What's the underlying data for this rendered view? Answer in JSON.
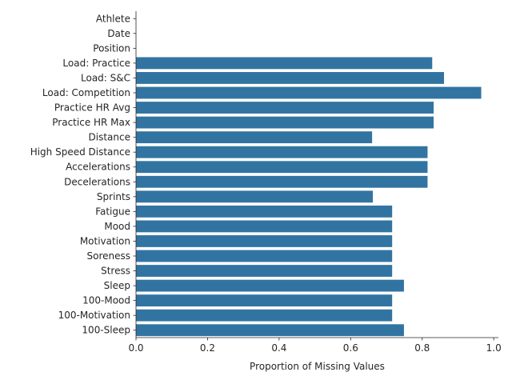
{
  "chart_data": {
    "type": "bar",
    "orientation": "horizontal",
    "categories": [
      "Athlete",
      "Date",
      "Position",
      "Load: Practice",
      "Load: S&C",
      "Load: Competition",
      "Practice HR Avg",
      "Practice HR Max",
      "Distance",
      "High Speed Distance",
      "Accelerations",
      "Decelerations",
      "Sprints",
      "Fatigue",
      "Mood",
      "Motivation",
      "Soreness",
      "Stress",
      "Sleep",
      "100-Mood",
      "100-Motivation",
      "100-Sleep"
    ],
    "values": [
      0,
      0,
      0,
      0.828,
      0.861,
      0.965,
      0.832,
      0.832,
      0.66,
      0.815,
      0.815,
      0.815,
      0.662,
      0.716,
      0.716,
      0.716,
      0.716,
      0.716,
      0.749,
      0.716,
      0.716,
      0.749
    ],
    "xlabel": "Proportion of Missing Values",
    "ylabel": "",
    "xlim": [
      0,
      1.0
    ],
    "xticks": [
      "0.0",
      "0.2",
      "0.4",
      "0.6",
      "0.8",
      "1.0"
    ],
    "grid": false,
    "colors": {
      "bar": "#3274a1",
      "axis": "#262626"
    }
  }
}
